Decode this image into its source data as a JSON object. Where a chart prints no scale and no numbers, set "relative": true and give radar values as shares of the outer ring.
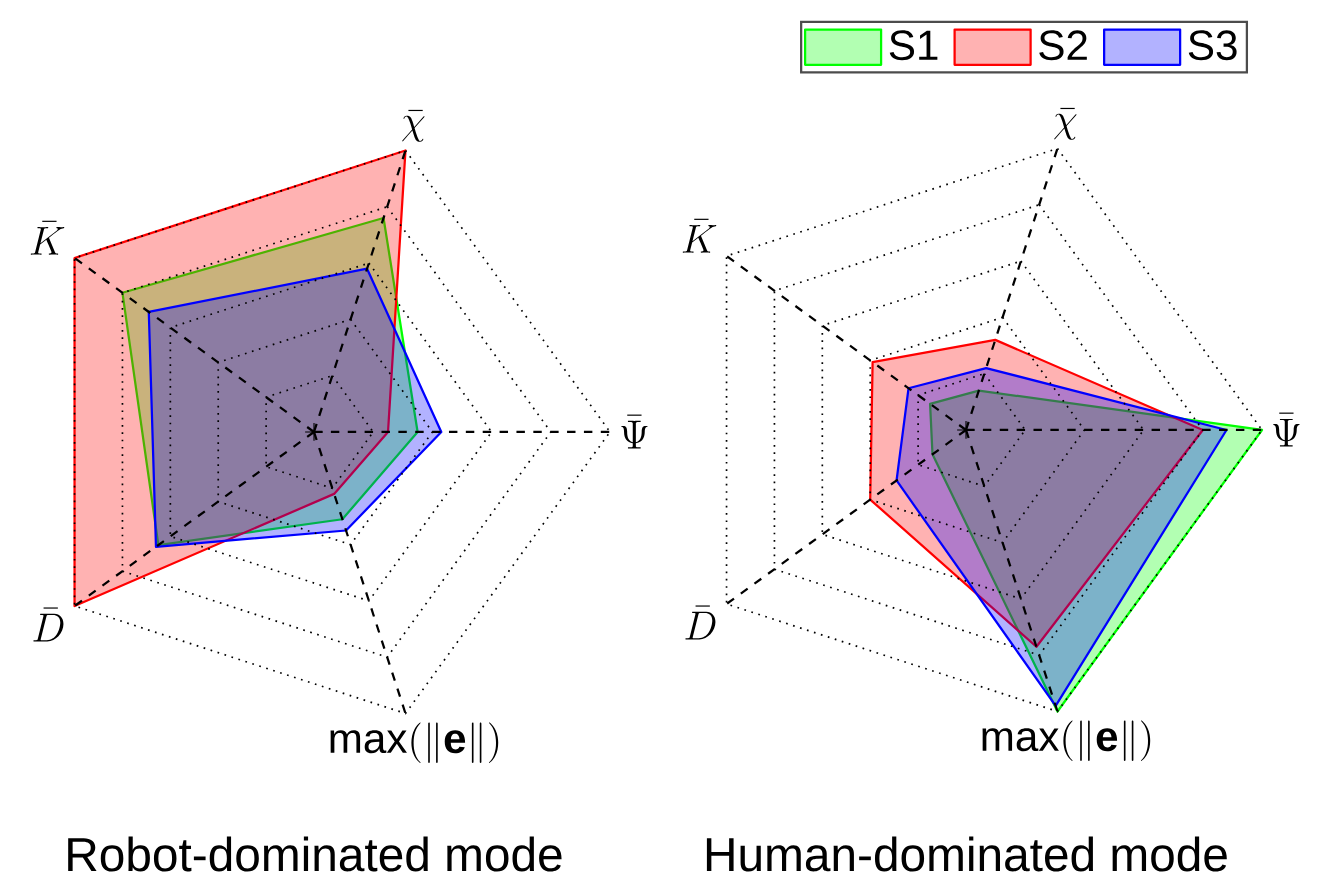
{
  "chart_data": [
    {
      "type": "radar",
      "title": "Robot-dominated mode",
      "relative": true,
      "grid": true,
      "legend": false,
      "categories": [
        "\\bar{\\chi}",
        "\\bar{\\Psi}",
        "\\max(\\|\\mathbf{e}\\|)",
        "\\bar{D}",
        "\\bar{K}"
      ],
      "series": [
        {
          "color": "#00ff00",
          "values": [
            0.76,
            0.35,
            0.31,
            0.65,
            0.8
          ]
        },
        {
          "color": "#ff0000",
          "values": [
            1.0,
            0.25,
            0.22,
            1.0,
            1.0
          ]
        },
        {
          "color": "#0000ff",
          "values": [
            0.58,
            0.43,
            0.35,
            0.66,
            0.69
          ]
        }
      ]
    },
    {
      "type": "radar",
      "title": "Human-dominated mode",
      "relative": true,
      "grid": true,
      "legend": "top",
      "categories": [
        "\\bar{\\chi}",
        "\\bar{\\Psi}",
        "\\max(\\|\\mathbf{e}\\|)",
        "\\bar{D}",
        "\\bar{K}"
      ],
      "series": [
        {
          "name": "S1",
          "color": "#00ff00",
          "values": [
            0.14,
            1.0,
            1.0,
            0.14,
            0.15
          ]
        },
        {
          "name": "S2",
          "color": "#ff0000",
          "values": [
            0.32,
            0.8,
            0.77,
            0.4,
            0.39
          ]
        },
        {
          "name": "S3",
          "color": "#0000ff",
          "values": [
            0.22,
            0.88,
            0.98,
            0.29,
            0.24
          ]
        }
      ]
    }
  ]
}
